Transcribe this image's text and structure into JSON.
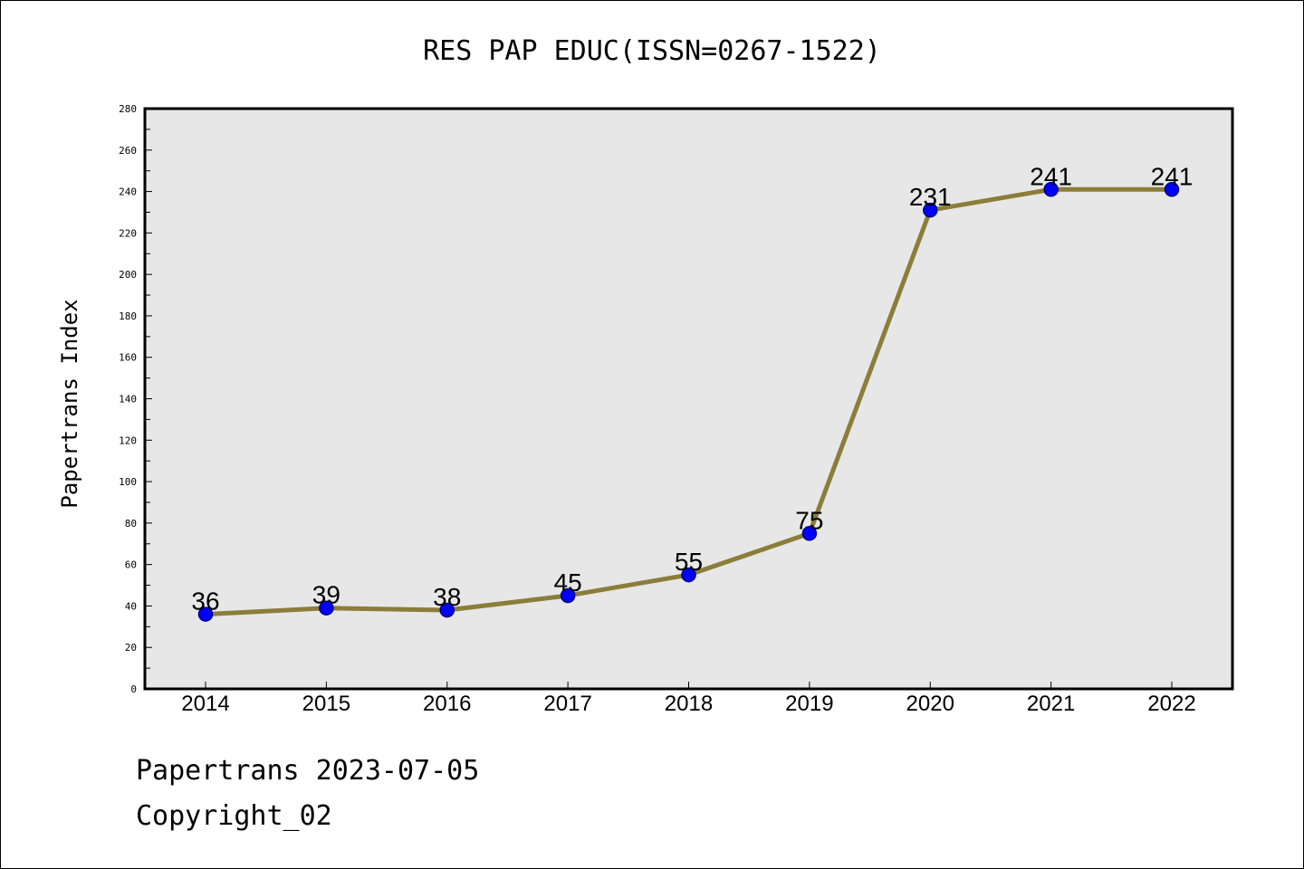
{
  "chart_data": {
    "type": "line",
    "title": "RES PAP EDUC(ISSN=0267-1522)",
    "xlabel": "",
    "ylabel": "Papertrans Index",
    "categories": [
      "2014",
      "2015",
      "2016",
      "2017",
      "2018",
      "2019",
      "2020",
      "2021",
      "2022"
    ],
    "series": [
      {
        "values": [
          36,
          39,
          38,
          45,
          55,
          75,
          231,
          241,
          241
        ]
      }
    ],
    "data_labels": [
      "36",
      "39",
      "38",
      "45",
      "55",
      "75",
      "231",
      "241",
      "241"
    ],
    "ylim": [
      0,
      280
    ],
    "yticks": [
      "0",
      "20",
      "40",
      "60",
      "80",
      "100",
      "120",
      "140",
      "160",
      "180",
      "200",
      "220",
      "240",
      "260",
      "280"
    ],
    "grid": false,
    "colors": {
      "line": "#8B7D3A",
      "marker_fill": "#0000FF",
      "marker_edge": "#000080",
      "plot_background": "#E7E7E7",
      "axes": "#000000"
    }
  },
  "footer": {
    "line1": "Papertrans 2023-07-05",
    "line2": "Copyright_02"
  }
}
